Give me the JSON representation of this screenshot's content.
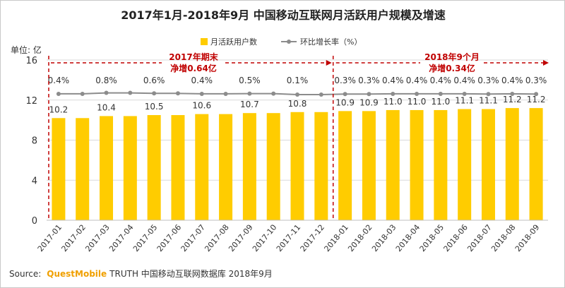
{
  "chart_data": {
    "type": "bar",
    "title": "2017年1月-2018年9月 中国移动互联网月活跃用户规模及增速",
    "unit_label": "单位: 亿",
    "ylim": [
      0,
      16
    ],
    "yticks": [
      0,
      4,
      8,
      12,
      16
    ],
    "grid": true,
    "legend_position": "top-center",
    "categories": [
      "2017-01",
      "2017-02",
      "2017-03",
      "2017-04",
      "2017-05",
      "2017-06",
      "2017-07",
      "2017-08",
      "2017-09",
      "2017-10",
      "2017-11",
      "2017-12",
      "2018-01",
      "2018-02",
      "2018-03",
      "2018-04",
      "2018-05",
      "2018-06",
      "2018-07",
      "2018-08",
      "2018-09"
    ],
    "series": [
      {
        "name": "月活跃用户数",
        "type": "bar",
        "color": "#FFCC00",
        "values": [
          10.2,
          10.2,
          10.4,
          10.4,
          10.5,
          10.5,
          10.6,
          10.6,
          10.7,
          10.7,
          10.8,
          10.8,
          10.9,
          10.9,
          11.0,
          11.0,
          11.0,
          11.1,
          11.1,
          11.2,
          11.2
        ],
        "labels": [
          "10.2",
          "",
          "10.4",
          "",
          "10.5",
          "",
          "10.6",
          "",
          "10.7",
          "",
          "10.8",
          "",
          "10.9",
          "10.9",
          "11.0",
          "11.0",
          "11.0",
          "11.1",
          "11.1",
          "11.2",
          "11.2"
        ]
      },
      {
        "name": "环比增长率（%）",
        "type": "line",
        "color": "#8C8C8C",
        "values": [
          0.4,
          0.4,
          0.8,
          0.8,
          0.6,
          0.6,
          0.4,
          0.4,
          0.5,
          0.5,
          0.1,
          0.1,
          0.3,
          0.3,
          0.4,
          0.4,
          0.4,
          0.4,
          0.3,
          0.4,
          0.3
        ],
        "labels": [
          "0.4%",
          "",
          "0.8%",
          "",
          "0.6%",
          "",
          "0.4%",
          "",
          "0.5%",
          "",
          "0.1%",
          "",
          "0.3%",
          "0.3%",
          "0.4%",
          "0.4%",
          "0.4%",
          "0.4%",
          "0.3%",
          "0.4%",
          "0.3%"
        ]
      }
    ],
    "annotations": [
      {
        "lines": [
          "2017年期末",
          "净增0.64亿"
        ],
        "color": "#C00000",
        "range": [
          "2017-01",
          "2017-12"
        ]
      },
      {
        "lines": [
          "2018年9个月",
          "净增0.34亿"
        ],
        "color": "#C00000",
        "range": [
          "2018-01",
          "2018-09"
        ]
      }
    ]
  },
  "source": {
    "label": "Source:",
    "brand": "QuestMobile",
    "rest": "TRUTH 中国移动互联网数据库 2018年9月"
  }
}
